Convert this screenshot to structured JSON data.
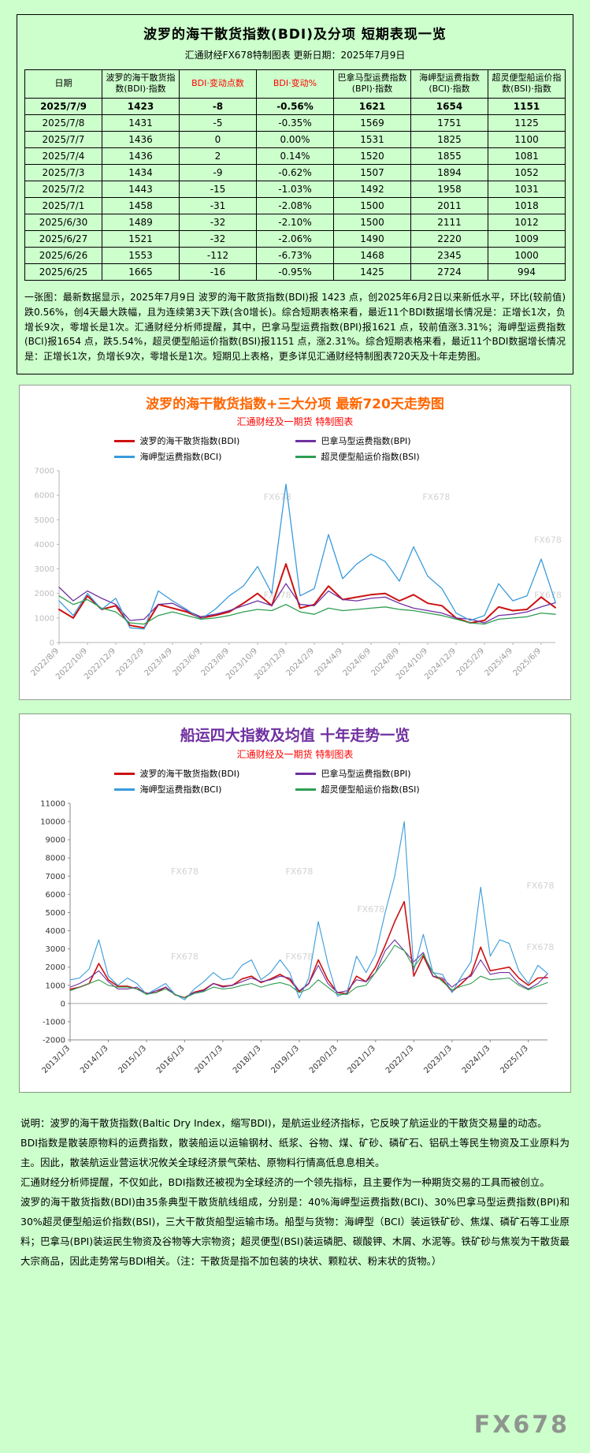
{
  "watermark": "FX678",
  "header": {
    "title": "波罗的海干散货指数(BDI)及分项 短期表现一览",
    "subtitle": "汇通财经FX678特制图表  更新日期：2025年7月9日"
  },
  "table": {
    "columns": [
      "日期",
      "波罗的海干散货指数(BDI)·指数",
      "BDI·变动点数",
      "BDI·变动%",
      "巴拿马型运费指数(BPI)·指数",
      "海岬型运费指数(BCI)·指数",
      "超灵便型船运价指数(BSI)·指数"
    ],
    "red_columns": [
      2,
      3
    ],
    "rows": [
      [
        "2025/7/9",
        "1423",
        "-8",
        "-0.56%",
        "1621",
        "1654",
        "1151"
      ],
      [
        "2025/7/8",
        "1431",
        "-5",
        "-0.35%",
        "1569",
        "1751",
        "1125"
      ],
      [
        "2025/7/7",
        "1436",
        "0",
        "0.00%",
        "1531",
        "1825",
        "1100"
      ],
      [
        "2025/7/4",
        "1436",
        "2",
        "0.14%",
        "1520",
        "1855",
        "1081"
      ],
      [
        "2025/7/3",
        "1434",
        "-9",
        "-0.62%",
        "1507",
        "1894",
        "1052"
      ],
      [
        "2025/7/2",
        "1443",
        "-15",
        "-1.03%",
        "1492",
        "1958",
        "1031"
      ],
      [
        "2025/7/1",
        "1458",
        "-31",
        "-2.08%",
        "1500",
        "2011",
        "1018"
      ],
      [
        "2025/6/30",
        "1489",
        "-32",
        "-2.10%",
        "1500",
        "2111",
        "1012"
      ],
      [
        "2025/6/27",
        "1521",
        "-32",
        "-2.06%",
        "1490",
        "2220",
        "1009"
      ],
      [
        "2025/6/26",
        "1553",
        "-112",
        "-6.73%",
        "1468",
        "2345",
        "1000"
      ],
      [
        "2025/6/25",
        "1665",
        "-16",
        "-0.95%",
        "1425",
        "2724",
        "994"
      ]
    ],
    "note": "一张图：最新数据显示，2025年7月9日 波罗的海干散货指数(BDI)报 1423 点，创2025年6月2日以来新低水平，环比(较前值)跌0.56%，创4天最大跌幅，且为连续第3天下跌(含0增长)。综合短期表格来看，最近11个BDI数据增长情况是：正增长1次，负增长9次，零增长是1次。汇通财经分析师提醒，其中，巴拿马型运费指数(BPI)报1621 点，较前值涨3.31%；海岬型运费指数(BCI)报1654 点，跌5.54%，超灵便型船运价指数(BSI)报1151 点，涨2.31%。综合短期表格来看，最近11个BDI数据增长情况是：正增长1次，负增长9次，零增长是1次。短期见上表格，更多详见汇通财经特制图表720天及十年走势图。"
  },
  "chart_data": [
    {
      "type": "line",
      "title": "波罗的海干散货指数+三大分项 最新720天走势图",
      "subtitle": "汇通财经及一期货 特制图表",
      "title_color": "#ff6600",
      "ylim": [
        0,
        7000
      ],
      "ystep": 1000,
      "x_label_step": 2,
      "x_labels": [
        "2022/8/9",
        "2022/10/9",
        "2022/12/9",
        "2023/2/9",
        "2023/4/9",
        "2023/6/9",
        "2023/8/9",
        "2023/10/9",
        "2023/12/9",
        "2024/2/9",
        "2024/4/9",
        "2024/6/9",
        "2024/8/9",
        "2024/10/9",
        "2024/12/9",
        "2025/2/9",
        "2025/4/9",
        "2025/6/9"
      ],
      "series": [
        {
          "name": "波罗的海干散货指数(BDI)",
          "color": "#cc1111",
          "values": [
            1350,
            1000,
            1900,
            1350,
            1500,
            700,
            600,
            1550,
            1400,
            1250,
            1000,
            1100,
            1250,
            1600,
            2000,
            1500,
            3200,
            1400,
            1550,
            2300,
            1750,
            1850,
            1950,
            2000,
            1700,
            1950,
            1600,
            1500,
            1000,
            800,
            900,
            1450,
            1300,
            1350,
            1850,
            1423
          ]
        },
        {
          "name": "巴拿马型运费指数(BPI)",
          "color": "#7030a0",
          "values": [
            2250,
            1700,
            2100,
            1800,
            1550,
            900,
            950,
            1550,
            1600,
            1300,
            1050,
            1150,
            1300,
            1500,
            1700,
            1500,
            2400,
            1550,
            1500,
            2100,
            1750,
            1700,
            1800,
            1850,
            1600,
            1400,
            1300,
            1200,
            1000,
            950,
            800,
            1100,
            1150,
            1250,
            1450,
            1621
          ]
        },
        {
          "name": "海岬型运费指数(BCI)",
          "color": "#3a9bdc",
          "values": [
            1700,
            1100,
            2000,
            1350,
            1800,
            600,
            550,
            2100,
            1700,
            1350,
            950,
            1350,
            1900,
            2300,
            3100,
            2000,
            6450,
            1900,
            2200,
            4400,
            2600,
            3200,
            3600,
            3300,
            2500,
            3900,
            2700,
            2200,
            1200,
            900,
            1100,
            2400,
            1700,
            1900,
            3400,
            1654
          ]
        },
        {
          "name": "超灵便型船运价指数(BSI)",
          "color": "#2e9e53",
          "values": [
            1900,
            1550,
            1750,
            1400,
            1250,
            800,
            750,
            1100,
            1250,
            1100,
            950,
            1000,
            1100,
            1250,
            1350,
            1300,
            1550,
            1250,
            1150,
            1400,
            1300,
            1350,
            1400,
            1450,
            1350,
            1300,
            1200,
            1100,
            950,
            800,
            750,
            950,
            1000,
            1050,
            1200,
            1151
          ]
        }
      ],
      "legend_position": "top",
      "grid": false
    },
    {
      "type": "line",
      "title": "船运四大指数及均值 十年走势一览",
      "subtitle": "汇通财经及一期货 特制图表",
      "title_color": "#7030a0",
      "ylim": [
        -2000,
        11000
      ],
      "ystep": 1000,
      "x_label_step": 4,
      "x_labels": [
        "2013/1/3",
        "2014/1/3",
        "2015/1/3",
        "2016/1/3",
        "2017/1/3",
        "2018/1/3",
        "2019/1/3",
        "2020/1/3",
        "2021/1/3",
        "2022/1/3",
        "2023/1/3",
        "2024/1/3",
        "2025/1/3"
      ],
      "series": [
        {
          "name": "波罗的海干散货指数(BDI)",
          "color": "#cc1111",
          "values": [
            780,
            900,
            1100,
            2200,
            1300,
            950,
            950,
            800,
            560,
            600,
            900,
            480,
            320,
            620,
            750,
            1100,
            950,
            1000,
            1350,
            1500,
            1150,
            1350,
            1600,
            1300,
            650,
            1100,
            2400,
            1300,
            600,
            550,
            1500,
            1200,
            2000,
            3200,
            4500,
            5600,
            1500,
            2600,
            1500,
            1300,
            650,
            1100,
            1600,
            3100,
            1800,
            1900,
            2000,
            1400,
            1000,
            1400,
            1423
          ]
        },
        {
          "name": "巴拿马型运费指数(BPI)",
          "color": "#7030a0",
          "values": [
            900,
            1100,
            1400,
            1800,
            1200,
            800,
            800,
            900,
            500,
            700,
            900,
            500,
            300,
            600,
            700,
            1100,
            900,
            1000,
            1200,
            1400,
            1200,
            1300,
            1500,
            1400,
            700,
            1100,
            2100,
            1100,
            600,
            700,
            1300,
            1200,
            1700,
            2900,
            3500,
            2900,
            2300,
            2800,
            1500,
            1400,
            900,
            1300,
            1500,
            2400,
            1600,
            1700,
            1700,
            1100,
            800,
            1100,
            1621
          ]
        },
        {
          "name": "海岬型运费指数(BCI)",
          "color": "#3a9bdc",
          "values": [
            1300,
            1400,
            1900,
            3500,
            1500,
            1000,
            1400,
            1100,
            500,
            800,
            1100,
            500,
            200,
            800,
            1200,
            1700,
            1300,
            1400,
            2100,
            2400,
            1300,
            1700,
            2400,
            1700,
            300,
            1400,
            4500,
            2200,
            400,
            600,
            2600,
            1700,
            2700,
            5000,
            7000,
            10000,
            1800,
            3800,
            1700,
            1600,
            600,
            1500,
            2300,
            6400,
            2600,
            3500,
            3300,
            1800,
            1100,
            2100,
            1654
          ]
        },
        {
          "name": "超灵便型船运价指数(BSI)",
          "color": "#2e9e53",
          "values": [
            700,
            900,
            1100,
            1300,
            1000,
            900,
            900,
            800,
            500,
            600,
            800,
            500,
            300,
            550,
            650,
            900,
            800,
            850,
            1000,
            1100,
            900,
            1050,
            1150,
            1000,
            600,
            800,
            1300,
            900,
            500,
            500,
            900,
            1000,
            1700,
            2400,
            3200,
            2900,
            2000,
            2700,
            1700,
            1200,
            750,
            950,
            1100,
            1500,
            1300,
            1350,
            1400,
            1000,
            750,
            950,
            1151
          ]
        }
      ],
      "legend_position": "top",
      "grid": false
    }
  ],
  "footer": {
    "paragraphs": [
      "说明：波罗的海干散货指数(Baltic Dry Index，缩写BDI)，是航运业经济指标，它反映了航运业的干散货交易量的动态。",
      "BDI指数是散装原物料的运费指数，散装船运以运输钢材、纸浆、谷物、煤、矿砂、磷矿石、铝矾土等民生物资及工业原料为主。因此，散装航运业营运状况攸关全球经济景气荣枯、原物料行情高低息息相关。",
      "汇通财经分析师提醒，不仅如此，BDI指数还被视为全球经济的一个领先指标，且主要作为一种期货交易的工具而被创立。",
      "波罗的海干散货指数(BDI)由35条典型干散货航线组成，分别是：40%海岬型运费指数(BCI)、30%巴拿马型运费指数(BPI)和30%超灵便型船运价指数(BSI)，三大干散货船型运输市场。船型与货物：海岬型（BCI）装运铁矿砂、焦煤、磷矿石等工业原料；巴拿马(BPI)装运民生物资及谷物等大宗物资；超灵便型(BSI)装运磷肥、碳酸钾、木屑、水泥等。铁矿砂与焦炭为干散货最大宗商品，因此走势常与BDI相关。（注：干散货是指不加包装的块状、颗粒状、粉末状的货物。）"
    ]
  }
}
